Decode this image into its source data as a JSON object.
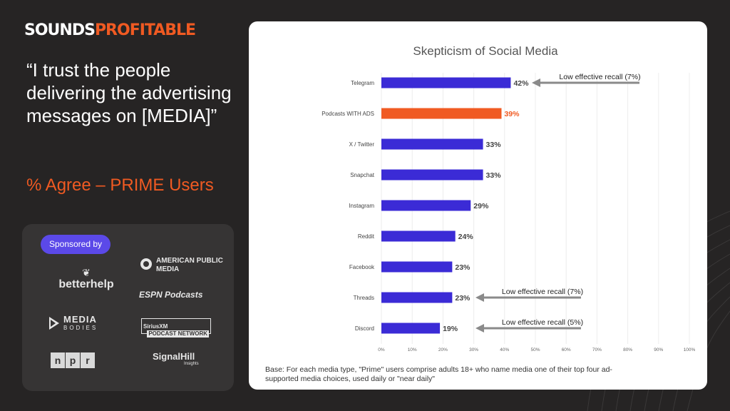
{
  "brand": {
    "part1": "SOUNDS",
    "part2": "PROFITABLE"
  },
  "quote": "“I trust the people delivering the advertising messages on [MEDIA]”",
  "subtitle": "% Agree – PRIME Users",
  "sponsors": {
    "pill": "Sponsored by",
    "betterhelp": "betterhelp",
    "apm": "AMERICAN PUBLIC MEDIA",
    "espn": "ESPN Podcasts",
    "media_bodies_1": "MEDIA",
    "media_bodies_2": "BODIES",
    "sirius_left": "SiriusXM",
    "sirius_right": "PODCAST NETWORK",
    "npr": [
      "n",
      "p",
      "r"
    ],
    "signalhill": "SignalHill",
    "signalhill_sub": "Insights"
  },
  "chart_data": {
    "type": "bar",
    "orientation": "horizontal",
    "title": "Skepticism of Social Media",
    "categories": [
      "Telegram",
      "Podcasts WITH ADS",
      "X / Twitter",
      "Snapchat",
      "Instagram",
      "Reddit",
      "Facebook",
      "Threads",
      "Discord"
    ],
    "values": [
      42,
      39,
      33,
      33,
      29,
      24,
      23,
      23,
      19
    ],
    "value_labels": [
      "42%",
      "39%",
      "33%",
      "33%",
      "29%",
      "24%",
      "23%",
      "23%",
      "19%"
    ],
    "highlight_index": 1,
    "xlim": [
      0,
      100
    ],
    "xticks": [
      "0%",
      "10%",
      "20%",
      "30%",
      "40%",
      "50%",
      "60%",
      "70%",
      "80%",
      "90%",
      "100%"
    ],
    "grid": true,
    "colors": {
      "bar": "#3b2bd6",
      "highlight": "#f05a22",
      "annotation_arrow": "#8a8a8a"
    },
    "annotations": [
      {
        "category": "Telegram",
        "text": "Low effective recall (7%)"
      },
      {
        "category": "Threads",
        "text": "Low effective recall (7%)"
      },
      {
        "category": "Discord",
        "text": "Low effective recall (5%)"
      }
    ]
  },
  "footnote": "Base: For each media type, \"Prime\" users comprise adults 18+ who name media one of their top four ad-supported media choices, used daily or \"near daily\""
}
